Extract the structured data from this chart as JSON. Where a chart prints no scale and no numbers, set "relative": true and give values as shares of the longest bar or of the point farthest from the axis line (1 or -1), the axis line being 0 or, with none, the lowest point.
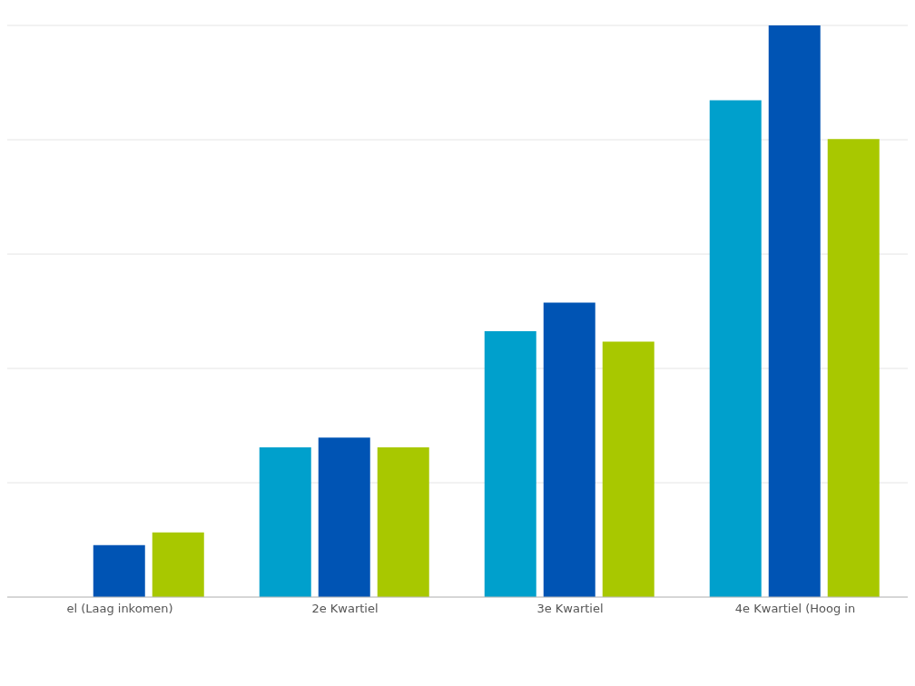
{
  "chart_data": {
    "type": "bar",
    "relative": true,
    "grid": "y",
    "categories": [
      "el (Laag inkomen)",
      "2e Kwartiel",
      "3e Kwartiel",
      "4e Kwartiel (Hoog in"
    ],
    "series": [
      {
        "color": "#00a0cc",
        "values": [
          null,
          0.262,
          0.465,
          0.869
        ]
      },
      {
        "color": "#0054b4",
        "values": [
          0.091,
          0.279,
          0.515,
          1
        ]
      },
      {
        "color": "#a8c800",
        "values": [
          0.113,
          0.262,
          0.447,
          0.801
        ]
      }
    ]
  }
}
